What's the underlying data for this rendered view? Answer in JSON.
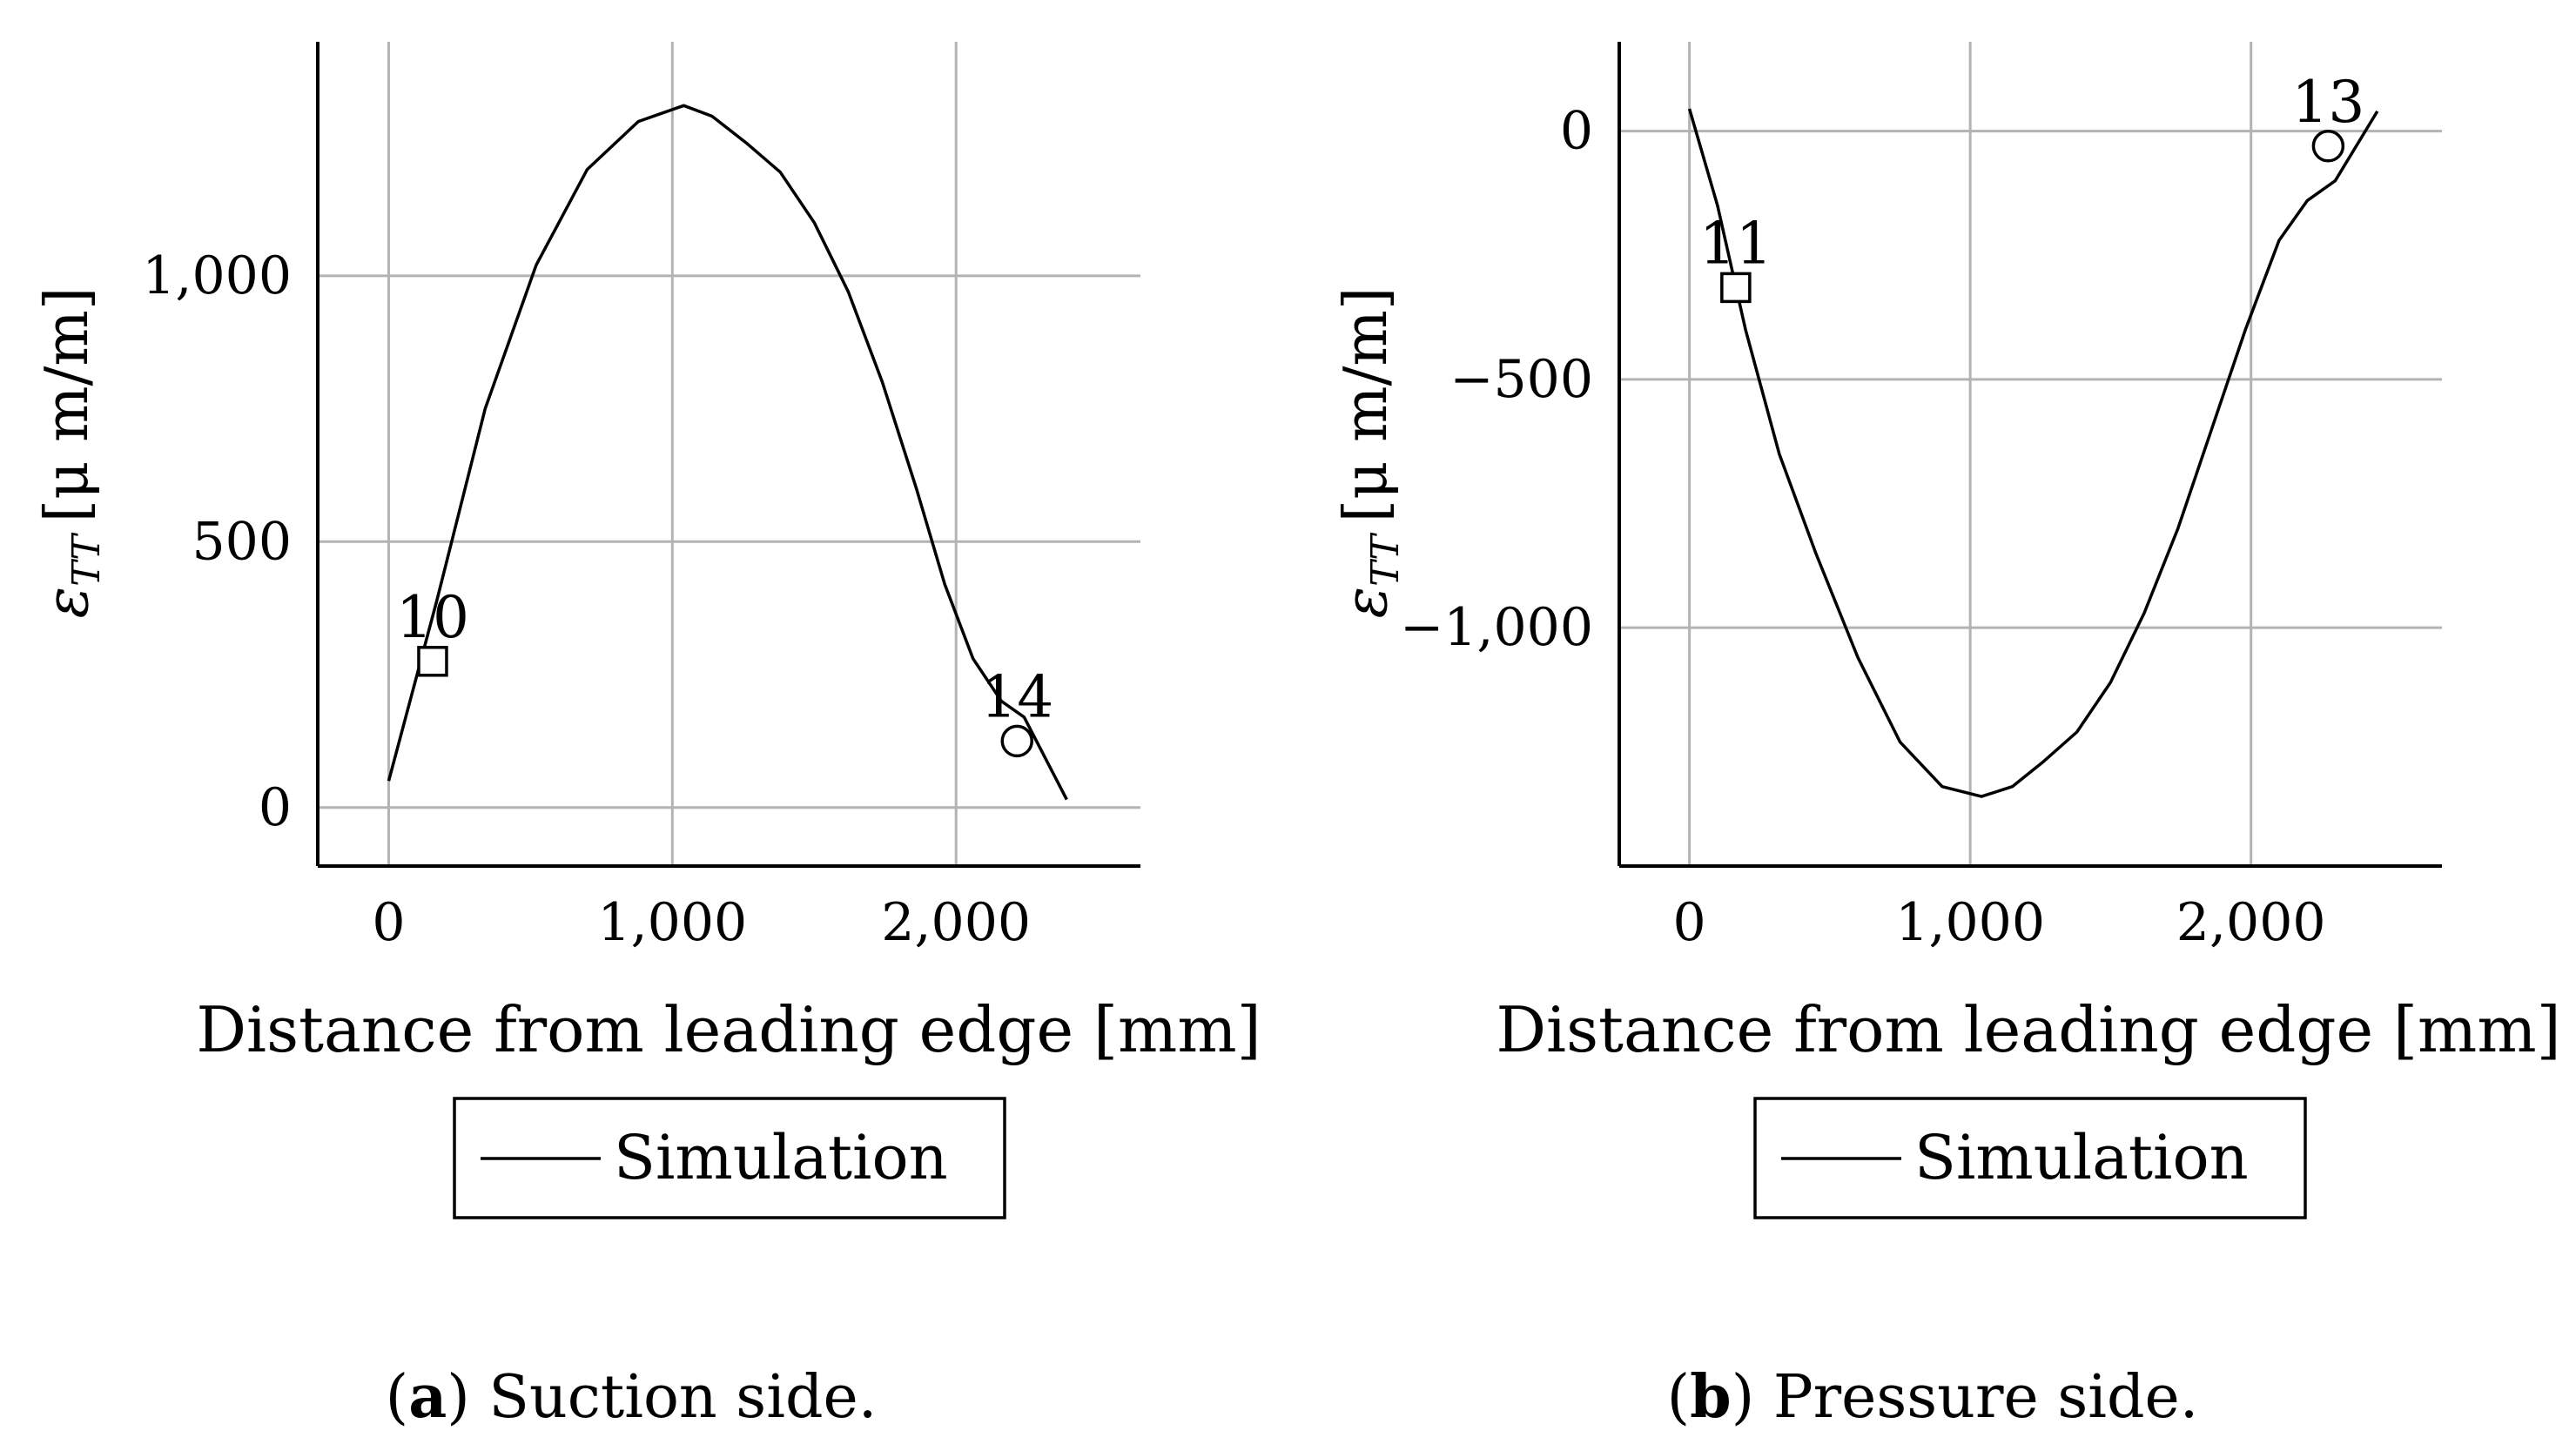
{
  "chart_data": [
    {
      "type": "line",
      "id": "a",
      "caption_letter": "a",
      "caption_text": "Suction side.",
      "xlabel": "Distance from leading edge [mm]",
      "ylabel_symbol": "ε",
      "ylabel_sub": "TT",
      "ylabel_unit": "[μ m/m]",
      "xlim": [
        -250,
        2650
      ],
      "ylim": [
        -110,
        1440
      ],
      "xticks": [
        0,
        1000,
        2000
      ],
      "xtick_labels": [
        "0",
        "1,000",
        "2,000"
      ],
      "yticks": [
        0,
        500,
        1000
      ],
      "ytick_labels": [
        "0",
        "500",
        "1,000"
      ],
      "grid": true,
      "legend": {
        "label": "Simulation",
        "placement": "below"
      },
      "series": [
        {
          "name": "Simulation",
          "x": [
            0,
            170,
            340,
            520,
            700,
            880,
            1040,
            1140,
            1260,
            1380,
            1500,
            1620,
            1740,
            1860,
            1960,
            2060,
            2160,
            2240,
            2390
          ],
          "y": [
            50,
            390,
            750,
            1020,
            1200,
            1290,
            1320,
            1300,
            1250,
            1195,
            1100,
            970,
            800,
            600,
            420,
            280,
            200,
            170,
            15
          ]
        }
      ],
      "markers": [
        {
          "label": "10",
          "shape": "square",
          "x": 155,
          "y": 275
        },
        {
          "label": "14",
          "shape": "circle",
          "x": 2215,
          "y": 125
        }
      ]
    },
    {
      "type": "line",
      "id": "b",
      "caption_letter": "b",
      "caption_text": "Pressure side.",
      "xlabel": "Distance from leading edge [mm]",
      "ylabel_symbol": "ε",
      "ylabel_sub": "TT",
      "ylabel_unit": "[μ m/m]",
      "xlim": [
        -250,
        2680
      ],
      "ylim": [
        -1480,
        180
      ],
      "xticks": [
        0,
        1000,
        2000
      ],
      "xtick_labels": [
        "0",
        "1,000",
        "2,000"
      ],
      "yticks": [
        0,
        -500,
        -1000
      ],
      "ytick_labels": [
        "0",
        "−500",
        "−1,000"
      ],
      "grid": true,
      "legend": {
        "label": "Simulation",
        "placement": "below"
      },
      "series": [
        {
          "name": "Simulation",
          "x": [
            0,
            100,
            200,
            320,
            450,
            600,
            750,
            900,
            1040,
            1150,
            1260,
            1380,
            1500,
            1620,
            1740,
            1860,
            1980,
            2100,
            2200,
            2300,
            2450
          ],
          "y": [
            45,
            -150,
            -400,
            -650,
            -850,
            -1060,
            -1230,
            -1320,
            -1340,
            -1320,
            -1270,
            -1210,
            -1110,
            -970,
            -800,
            -600,
            -400,
            -220,
            -140,
            -100,
            40
          ]
        }
      ],
      "markers": [
        {
          "label": "11",
          "shape": "square",
          "x": 165,
          "y": -315
        },
        {
          "label": "13",
          "shape": "circle",
          "x": 2275,
          "y": -30
        }
      ]
    }
  ]
}
